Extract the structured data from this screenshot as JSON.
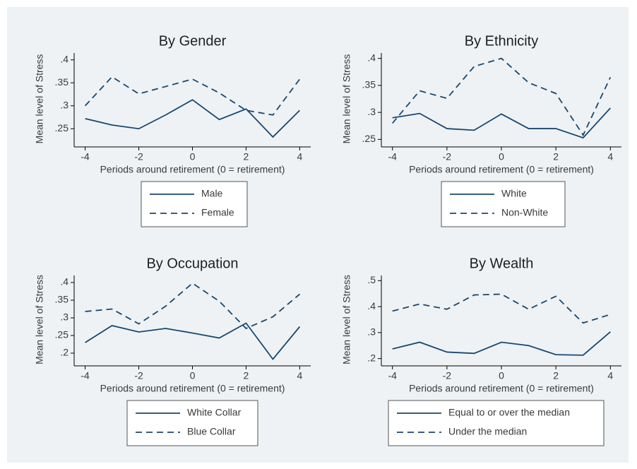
{
  "chart_data": [
    {
      "type": "line",
      "title": "By Gender",
      "ylabel": "Mean level of Stress",
      "xlabel": "Periods around retirement (0 = retirement)",
      "x": [
        -4,
        -3,
        -2,
        -1,
        0,
        1,
        2,
        3,
        4
      ],
      "xlim": [
        -4.2,
        4.2
      ],
      "xticks": [
        -4,
        -2,
        0,
        2,
        4
      ],
      "ylim": [
        0.215,
        0.415
      ],
      "yticks": [
        {
          "value": 0.25,
          "label": ".25"
        },
        {
          "value": 0.3,
          "label": ".3"
        },
        {
          "value": 0.35,
          "label": ".35"
        },
        {
          "value": 0.4,
          "label": ".4"
        }
      ],
      "series": [
        {
          "name": "Male",
          "color": "#1a476f",
          "style": "solid",
          "values": [
            0.272,
            0.258,
            0.25,
            0.28,
            0.313,
            0.27,
            0.293,
            0.232,
            0.29
          ]
        },
        {
          "name": "Female",
          "color": "#1a476f",
          "style": "dashed",
          "values": [
            0.3,
            0.363,
            0.326,
            0.342,
            0.358,
            0.328,
            0.29,
            0.28,
            0.358
          ]
        }
      ]
    },
    {
      "type": "line",
      "title": "By Ethnicity",
      "ylabel": "Mean level of Stress",
      "xlabel": "Periods around retirement (0 = retirement)",
      "x": [
        -4,
        -3,
        -2,
        -1,
        0,
        1,
        2,
        3,
        4
      ],
      "xlim": [
        -4.2,
        4.2
      ],
      "xticks": [
        -4,
        -2,
        0,
        2,
        4
      ],
      "ylim": [
        0.24,
        0.41
      ],
      "yticks": [
        {
          "value": 0.25,
          "label": ".25"
        },
        {
          "value": 0.3,
          "label": ".3"
        },
        {
          "value": 0.35,
          "label": ".35"
        },
        {
          "value": 0.4,
          "label": ".4"
        }
      ],
      "series": [
        {
          "name": "White",
          "color": "#1a476f",
          "style": "solid",
          "values": [
            0.29,
            0.298,
            0.27,
            0.267,
            0.297,
            0.27,
            0.27,
            0.253,
            0.308
          ]
        },
        {
          "name": "Non-White",
          "color": "#1a476f",
          "style": "dashed",
          "values": [
            0.28,
            0.34,
            0.326,
            0.385,
            0.4,
            0.355,
            0.335,
            0.258,
            0.365
          ]
        }
      ]
    },
    {
      "type": "line",
      "title": "By Occupation",
      "ylabel": "Mean level of Stress",
      "xlabel": "Periods around retirement (0 = retirement)",
      "x": [
        -4,
        -3,
        -2,
        -1,
        0,
        1,
        2,
        3,
        4
      ],
      "xlim": [
        -4.2,
        4.2
      ],
      "xticks": [
        -4,
        -2,
        0,
        2,
        4
      ],
      "ylim": [
        0.17,
        0.42
      ],
      "yticks": [
        {
          "value": 0.2,
          "label": ".2"
        },
        {
          "value": 0.25,
          "label": ".25"
        },
        {
          "value": 0.3,
          "label": ".3"
        },
        {
          "value": 0.35,
          "label": ".35"
        },
        {
          "value": 0.4,
          "label": ".4"
        }
      ],
      "series": [
        {
          "name": "White Collar",
          "color": "#1a476f",
          "style": "solid",
          "values": [
            0.23,
            0.278,
            0.26,
            0.27,
            0.257,
            0.243,
            0.285,
            0.183,
            0.275
          ]
        },
        {
          "name": "Blue Collar",
          "color": "#1a476f",
          "style": "dashed",
          "values": [
            0.318,
            0.325,
            0.283,
            0.333,
            0.398,
            0.347,
            0.27,
            0.303,
            0.367
          ]
        }
      ]
    },
    {
      "type": "line",
      "title": "By Wealth",
      "ylabel": "Mean level of Stress",
      "xlabel": "Periods around retirement (0 = retirement)",
      "x": [
        -4,
        -3,
        -2,
        -1,
        0,
        1,
        2,
        3,
        4
      ],
      "xlim": [
        -4.2,
        4.2
      ],
      "xticks": [
        -4,
        -2,
        0,
        2,
        4
      ],
      "ylim": [
        0.18,
        0.52
      ],
      "yticks": [
        {
          "value": 0.2,
          "label": ".2"
        },
        {
          "value": 0.3,
          "label": ".3"
        },
        {
          "value": 0.4,
          "label": ".4"
        },
        {
          "value": 0.5,
          "label": ".5"
        }
      ],
      "series": [
        {
          "name": "Equal to or over the median",
          "color": "#1a476f",
          "style": "solid",
          "values": [
            0.237,
            0.263,
            0.225,
            0.22,
            0.263,
            0.25,
            0.215,
            0.213,
            0.303
          ]
        },
        {
          "name": "Under the median",
          "color": "#1a476f",
          "style": "dashed",
          "values": [
            0.383,
            0.41,
            0.39,
            0.445,
            0.448,
            0.39,
            0.44,
            0.337,
            0.37
          ]
        }
      ]
    }
  ]
}
